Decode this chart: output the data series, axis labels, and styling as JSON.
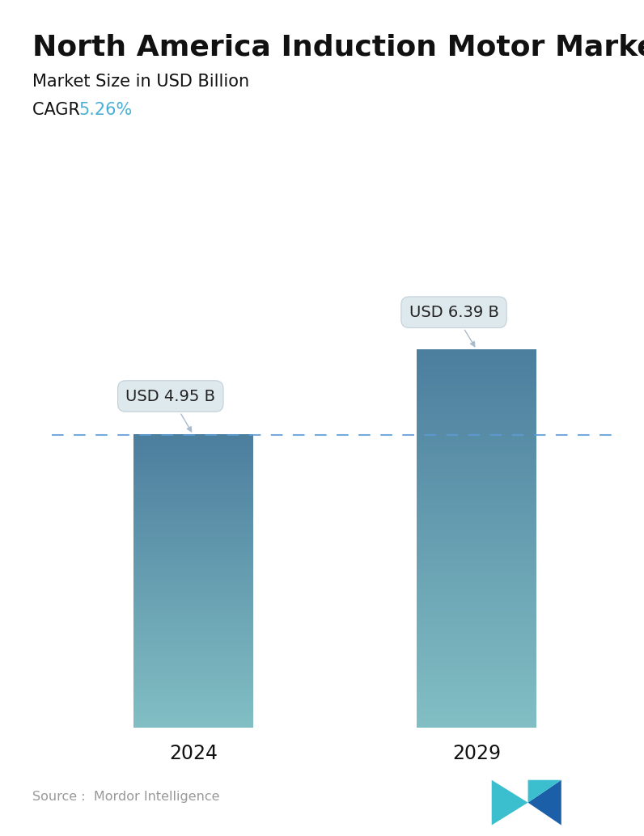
{
  "title": "North America Induction Motor Market",
  "subtitle": "Market Size in USD Billion",
  "cagr_label": "CAGR ",
  "cagr_value": "5.26%",
  "cagr_color": "#4AAFD5",
  "categories": [
    "2024",
    "2029"
  ],
  "values": [
    4.95,
    6.39
  ],
  "bar_labels": [
    "USD 4.95 B",
    "USD 6.39 B"
  ],
  "bar_top_color": "#4C7E9E",
  "bar_bottom_color": "#82BFC4",
  "dashed_line_color": "#5B9BD5",
  "dashed_line_value": 4.95,
  "background_color": "#FFFFFF",
  "source_text": "Source :  Mordor Intelligence",
  "source_color": "#999999",
  "title_fontsize": 26,
  "subtitle_fontsize": 15,
  "cagr_fontsize": 15,
  "xlabel_fontsize": 17,
  "annotation_fontsize": 14,
  "ylim": [
    0,
    8.2
  ],
  "bar_width": 0.42
}
